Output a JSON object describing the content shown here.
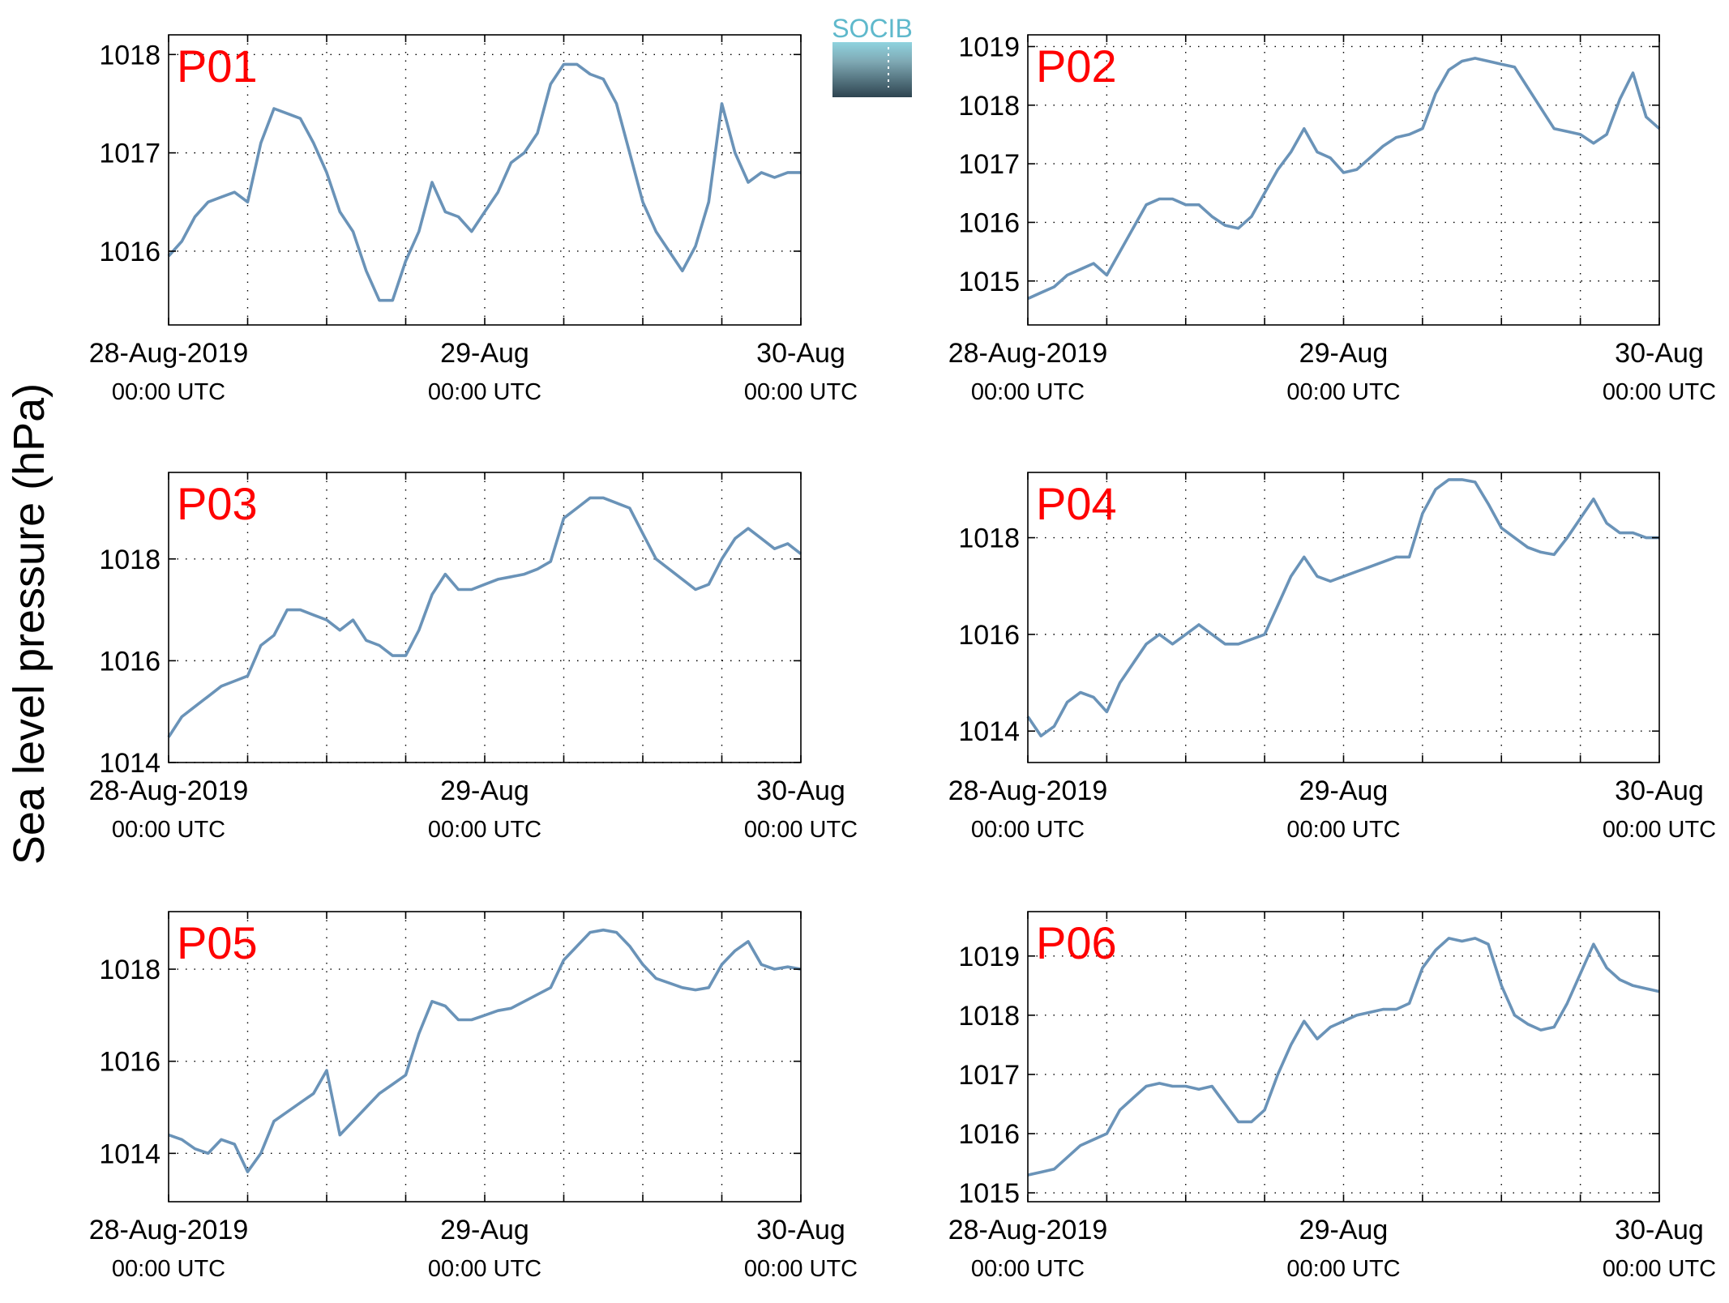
{
  "figure": {
    "ylabel": "Sea level pressure (hPa)",
    "logo_text": "SOCIB"
  },
  "colors": {
    "line": "#6a93b8",
    "panel_label": "#ff0000",
    "axis": "#000000",
    "grid": "#000000",
    "logo_top": "#8fd3df",
    "logo_bottom": "#2e4450"
  },
  "chart_data": [
    {
      "type": "line",
      "label": "P01",
      "x_range": [
        "2019-08-28T00:00Z",
        "2019-08-30T00:00Z"
      ],
      "xticks": [
        {
          "line1": "28-Aug-2019",
          "line2": "00:00 UTC"
        },
        {
          "line1": "29-Aug",
          "line2": "00:00 UTC"
        },
        {
          "line1": "30-Aug",
          "line2": "00:00 UTC"
        }
      ],
      "ylim": [
        1015.25,
        1018.2
      ],
      "yticks": [
        1016,
        1017,
        1018
      ],
      "grid": true,
      "hours": [
        0,
        1,
        2,
        3,
        4,
        5,
        6,
        7,
        8,
        9,
        10,
        11,
        12,
        13,
        14,
        15,
        16,
        17,
        18,
        19,
        20,
        21,
        22,
        23,
        24,
        25,
        26,
        27,
        28,
        29,
        30,
        31,
        32,
        33,
        34,
        35,
        36,
        37,
        38,
        39,
        40,
        41,
        42,
        43,
        44,
        45,
        46,
        47,
        48
      ],
      "values": [
        1015.95,
        1016.1,
        1016.35,
        1016.5,
        1016.55,
        1016.6,
        1016.5,
        1017.1,
        1017.45,
        1017.4,
        1017.35,
        1017.1,
        1016.8,
        1016.4,
        1016.2,
        1015.8,
        1015.5,
        1015.5,
        1015.9,
        1016.2,
        1016.7,
        1016.4,
        1016.35,
        1016.2,
        1016.4,
        1016.6,
        1016.9,
        1017.0,
        1017.2,
        1017.7,
        1017.9,
        1017.9,
        1017.8,
        1017.75,
        1017.5,
        1017.0,
        1016.5,
        1016.2,
        1016.0,
        1015.8,
        1016.05,
        1016.5,
        1017.5,
        1017.0,
        1016.7,
        1016.8,
        1016.75,
        1016.8,
        1016.8
      ]
    },
    {
      "type": "line",
      "label": "P02",
      "x_range": [
        "2019-08-28T00:00Z",
        "2019-08-30T00:00Z"
      ],
      "xticks": [
        {
          "line1": "28-Aug-2019",
          "line2": "00:00 UTC"
        },
        {
          "line1": "29-Aug",
          "line2": "00:00 UTC"
        },
        {
          "line1": "30-Aug",
          "line2": "00:00 UTC"
        }
      ],
      "ylim": [
        1014.25,
        1019.2
      ],
      "yticks": [
        1015,
        1016,
        1017,
        1018,
        1019
      ],
      "grid": true,
      "hours": [
        0,
        1,
        2,
        3,
        4,
        5,
        6,
        7,
        8,
        9,
        10,
        11,
        12,
        13,
        14,
        15,
        16,
        17,
        18,
        19,
        20,
        21,
        22,
        23,
        24,
        25,
        26,
        27,
        28,
        29,
        30,
        31,
        32,
        33,
        34,
        35,
        36,
        37,
        38,
        39,
        40,
        41,
        42,
        43,
        44,
        45,
        46,
        47,
        48
      ],
      "values": [
        1014.7,
        1014.8,
        1014.9,
        1015.1,
        1015.2,
        1015.3,
        1015.1,
        1015.5,
        1015.9,
        1016.3,
        1016.4,
        1016.4,
        1016.3,
        1016.3,
        1016.1,
        1015.95,
        1015.9,
        1016.1,
        1016.5,
        1016.9,
        1017.2,
        1017.6,
        1017.2,
        1017.1,
        1016.85,
        1016.9,
        1017.1,
        1017.3,
        1017.45,
        1017.5,
        1017.6,
        1018.2,
        1018.6,
        1018.75,
        1018.8,
        1018.75,
        1018.7,
        1018.65,
        1018.3,
        1017.95,
        1017.6,
        1017.55,
        1017.5,
        1017.35,
        1017.5,
        1018.1,
        1018.55,
        1017.8,
        1017.6
      ]
    },
    {
      "type": "line",
      "label": "P03",
      "x_range": [
        "2019-08-28T00:00Z",
        "2019-08-30T00:00Z"
      ],
      "xticks": [
        {
          "line1": "28-Aug-2019",
          "line2": "00:00 UTC"
        },
        {
          "line1": "29-Aug",
          "line2": "00:00 UTC"
        },
        {
          "line1": "30-Aug",
          "line2": "00:00 UTC"
        }
      ],
      "ylim": [
        1014.0,
        1019.7
      ],
      "yticks": [
        1014,
        1016,
        1018
      ],
      "grid": true,
      "hours": [
        0,
        1,
        2,
        3,
        4,
        5,
        6,
        7,
        8,
        9,
        10,
        11,
        12,
        13,
        14,
        15,
        16,
        17,
        18,
        19,
        20,
        21,
        22,
        23,
        24,
        25,
        26,
        27,
        28,
        29,
        30,
        31,
        32,
        33,
        34,
        35,
        36,
        37,
        38,
        39,
        40,
        41,
        42,
        43,
        44,
        45,
        46,
        47,
        48
      ],
      "values": [
        1014.5,
        1014.9,
        1015.1,
        1015.3,
        1015.5,
        1015.6,
        1015.7,
        1016.3,
        1016.5,
        1017.0,
        1017.0,
        1016.9,
        1016.8,
        1016.6,
        1016.8,
        1016.4,
        1016.3,
        1016.1,
        1016.1,
        1016.6,
        1017.3,
        1017.7,
        1017.4,
        1017.4,
        1017.5,
        1017.6,
        1017.65,
        1017.7,
        1017.8,
        1017.95,
        1018.8,
        1019.0,
        1019.2,
        1019.2,
        1019.1,
        1019.0,
        1018.5,
        1018.0,
        1017.8,
        1017.6,
        1017.4,
        1017.5,
        1018.0,
        1018.4,
        1018.6,
        1018.4,
        1018.2,
        1018.3,
        1018.1
      ]
    },
    {
      "type": "line",
      "label": "P04",
      "x_range": [
        "2019-08-28T00:00Z",
        "2019-08-30T00:00Z"
      ],
      "xticks": [
        {
          "line1": "28-Aug-2019",
          "line2": "00:00 UTC"
        },
        {
          "line1": "29-Aug",
          "line2": "00:00 UTC"
        },
        {
          "line1": "30-Aug",
          "line2": "00:00 UTC"
        }
      ],
      "ylim": [
        1013.35,
        1019.35
      ],
      "yticks": [
        1014,
        1016,
        1018
      ],
      "grid": true,
      "hours": [
        0,
        1,
        2,
        3,
        4,
        5,
        6,
        7,
        8,
        9,
        10,
        11,
        12,
        13,
        14,
        15,
        16,
        17,
        18,
        19,
        20,
        21,
        22,
        23,
        24,
        25,
        26,
        27,
        28,
        29,
        30,
        31,
        32,
        33,
        34,
        35,
        36,
        37,
        38,
        39,
        40,
        41,
        42,
        43,
        44,
        45,
        46,
        47,
        48
      ],
      "values": [
        1014.3,
        1013.9,
        1014.1,
        1014.6,
        1014.8,
        1014.7,
        1014.4,
        1015.0,
        1015.4,
        1015.8,
        1016.0,
        1015.8,
        1016.0,
        1016.2,
        1016.0,
        1015.8,
        1015.8,
        1015.9,
        1016.0,
        1016.6,
        1017.2,
        1017.6,
        1017.2,
        1017.1,
        1017.2,
        1017.3,
        1017.4,
        1017.5,
        1017.6,
        1017.6,
        1018.5,
        1019.0,
        1019.2,
        1019.2,
        1019.15,
        1018.7,
        1018.2,
        1018.0,
        1017.8,
        1017.7,
        1017.65,
        1018.0,
        1018.4,
        1018.8,
        1018.3,
        1018.1,
        1018.1,
        1018.0,
        1018.0
      ]
    },
    {
      "type": "line",
      "label": "P05",
      "x_range": [
        "2019-08-28T00:00Z",
        "2019-08-30T00:00Z"
      ],
      "xticks": [
        {
          "line1": "28-Aug-2019",
          "line2": "00:00 UTC"
        },
        {
          "line1": "29-Aug",
          "line2": "00:00 UTC"
        },
        {
          "line1": "30-Aug",
          "line2": "00:00 UTC"
        }
      ],
      "ylim": [
        1012.95,
        1019.25
      ],
      "yticks": [
        1014,
        1016,
        1018
      ],
      "grid": true,
      "hours": [
        0,
        1,
        2,
        3,
        4,
        5,
        6,
        7,
        8,
        9,
        10,
        11,
        12,
        13,
        14,
        15,
        16,
        17,
        18,
        19,
        20,
        21,
        22,
        23,
        24,
        25,
        26,
        27,
        28,
        29,
        30,
        31,
        32,
        33,
        34,
        35,
        36,
        37,
        38,
        39,
        40,
        41,
        42,
        43,
        44,
        45,
        46,
        47,
        48
      ],
      "values": [
        1014.4,
        1014.3,
        1014.1,
        1014.0,
        1014.3,
        1014.2,
        1013.6,
        1014.0,
        1014.7,
        1014.9,
        1015.1,
        1015.3,
        1015.8,
        1014.4,
        1014.7,
        1015.0,
        1015.3,
        1015.5,
        1015.7,
        1016.6,
        1017.3,
        1017.2,
        1016.9,
        1016.9,
        1017.0,
        1017.1,
        1017.15,
        1017.3,
        1017.45,
        1017.6,
        1018.2,
        1018.5,
        1018.8,
        1018.85,
        1018.8,
        1018.5,
        1018.1,
        1017.8,
        1017.7,
        1017.6,
        1017.55,
        1017.6,
        1018.1,
        1018.4,
        1018.6,
        1018.1,
        1018.0,
        1018.05,
        1018.0
      ]
    },
    {
      "type": "line",
      "label": "P06",
      "x_range": [
        "2019-08-28T00:00Z",
        "2019-08-30T00:00Z"
      ],
      "xticks": [
        {
          "line1": "28-Aug-2019",
          "line2": "00:00 UTC"
        },
        {
          "line1": "29-Aug",
          "line2": "00:00 UTC"
        },
        {
          "line1": "30-Aug",
          "line2": "00:00 UTC"
        }
      ],
      "ylim": [
        1014.85,
        1019.75
      ],
      "yticks": [
        1015,
        1016,
        1017,
        1018,
        1019
      ],
      "grid": true,
      "hours": [
        0,
        1,
        2,
        3,
        4,
        5,
        6,
        7,
        8,
        9,
        10,
        11,
        12,
        13,
        14,
        15,
        16,
        17,
        18,
        19,
        20,
        21,
        22,
        23,
        24,
        25,
        26,
        27,
        28,
        29,
        30,
        31,
        32,
        33,
        34,
        35,
        36,
        37,
        38,
        39,
        40,
        41,
        42,
        43,
        44,
        45,
        46,
        47,
        48
      ],
      "values": [
        1015.3,
        1015.35,
        1015.4,
        1015.6,
        1015.8,
        1015.9,
        1016.0,
        1016.4,
        1016.6,
        1016.8,
        1016.85,
        1016.8,
        1016.8,
        1016.75,
        1016.8,
        1016.5,
        1016.2,
        1016.2,
        1016.4,
        1017.0,
        1017.5,
        1017.9,
        1017.6,
        1017.8,
        1017.9,
        1018.0,
        1018.05,
        1018.1,
        1018.1,
        1018.2,
        1018.8,
        1019.1,
        1019.3,
        1019.25,
        1019.3,
        1019.2,
        1018.5,
        1018.0,
        1017.85,
        1017.75,
        1017.8,
        1018.2,
        1018.7,
        1019.2,
        1018.8,
        1018.6,
        1018.5,
        1018.45,
        1018.4
      ]
    }
  ]
}
